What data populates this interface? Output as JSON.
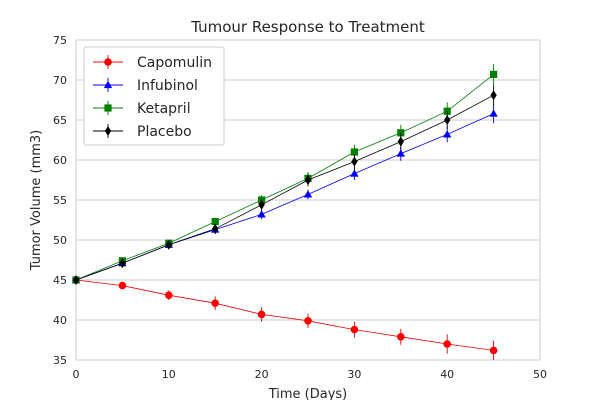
{
  "chart_data": {
    "type": "line",
    "title": "Tumour Response to Treatment",
    "xlabel": "Time (Days)",
    "ylabel": "Tumor Volume (mm3)",
    "xlim": [
      0,
      50
    ],
    "ylim": [
      35,
      75
    ],
    "xticks": [
      "0",
      "10",
      "20",
      "30",
      "40",
      "50"
    ],
    "yticks": [
      "35",
      "40",
      "45",
      "50",
      "55",
      "60",
      "65",
      "70",
      "75"
    ],
    "grid": "horizontal",
    "legend_position": "top-left",
    "x": [
      0,
      5,
      10,
      15,
      20,
      25,
      30,
      35,
      40,
      45
    ],
    "series": [
      {
        "name": "Capomulin",
        "color": "#ff0000",
        "marker": "circle",
        "values": [
          45.0,
          44.3,
          43.1,
          42.1,
          40.7,
          39.9,
          38.8,
          37.9,
          37.0,
          36.2
        ],
        "errors": [
          0,
          0.45,
          0.6,
          0.85,
          0.9,
          0.9,
          1.0,
          1.0,
          1.2,
          1.2
        ]
      },
      {
        "name": "Infubinol",
        "color": "#0000ff",
        "marker": "triangle",
        "values": [
          45.0,
          47.1,
          49.4,
          51.3,
          53.2,
          55.7,
          58.3,
          60.8,
          63.2,
          65.8
        ],
        "errors": [
          0,
          0.25,
          0.4,
          0.55,
          0.6,
          0.6,
          0.8,
          0.9,
          1.0,
          1.2
        ]
      },
      {
        "name": "Ketapril",
        "color": "#008000",
        "marker": "square",
        "values": [
          45.0,
          47.4,
          49.6,
          52.3,
          55.0,
          57.7,
          61.0,
          63.4,
          66.1,
          70.7
        ],
        "errors": [
          0,
          0.3,
          0.45,
          0.5,
          0.6,
          0.8,
          0.9,
          1.0,
          1.1,
          1.3
        ]
      },
      {
        "name": "Placebo",
        "color": "#000000",
        "marker": "diamond",
        "values": [
          45.0,
          47.1,
          49.4,
          51.4,
          54.4,
          57.5,
          59.8,
          62.3,
          65.0,
          68.1
        ],
        "errors": [
          0,
          0.25,
          0.4,
          0.6,
          0.7,
          0.8,
          0.9,
          1.1,
          1.1,
          1.3
        ]
      }
    ]
  }
}
